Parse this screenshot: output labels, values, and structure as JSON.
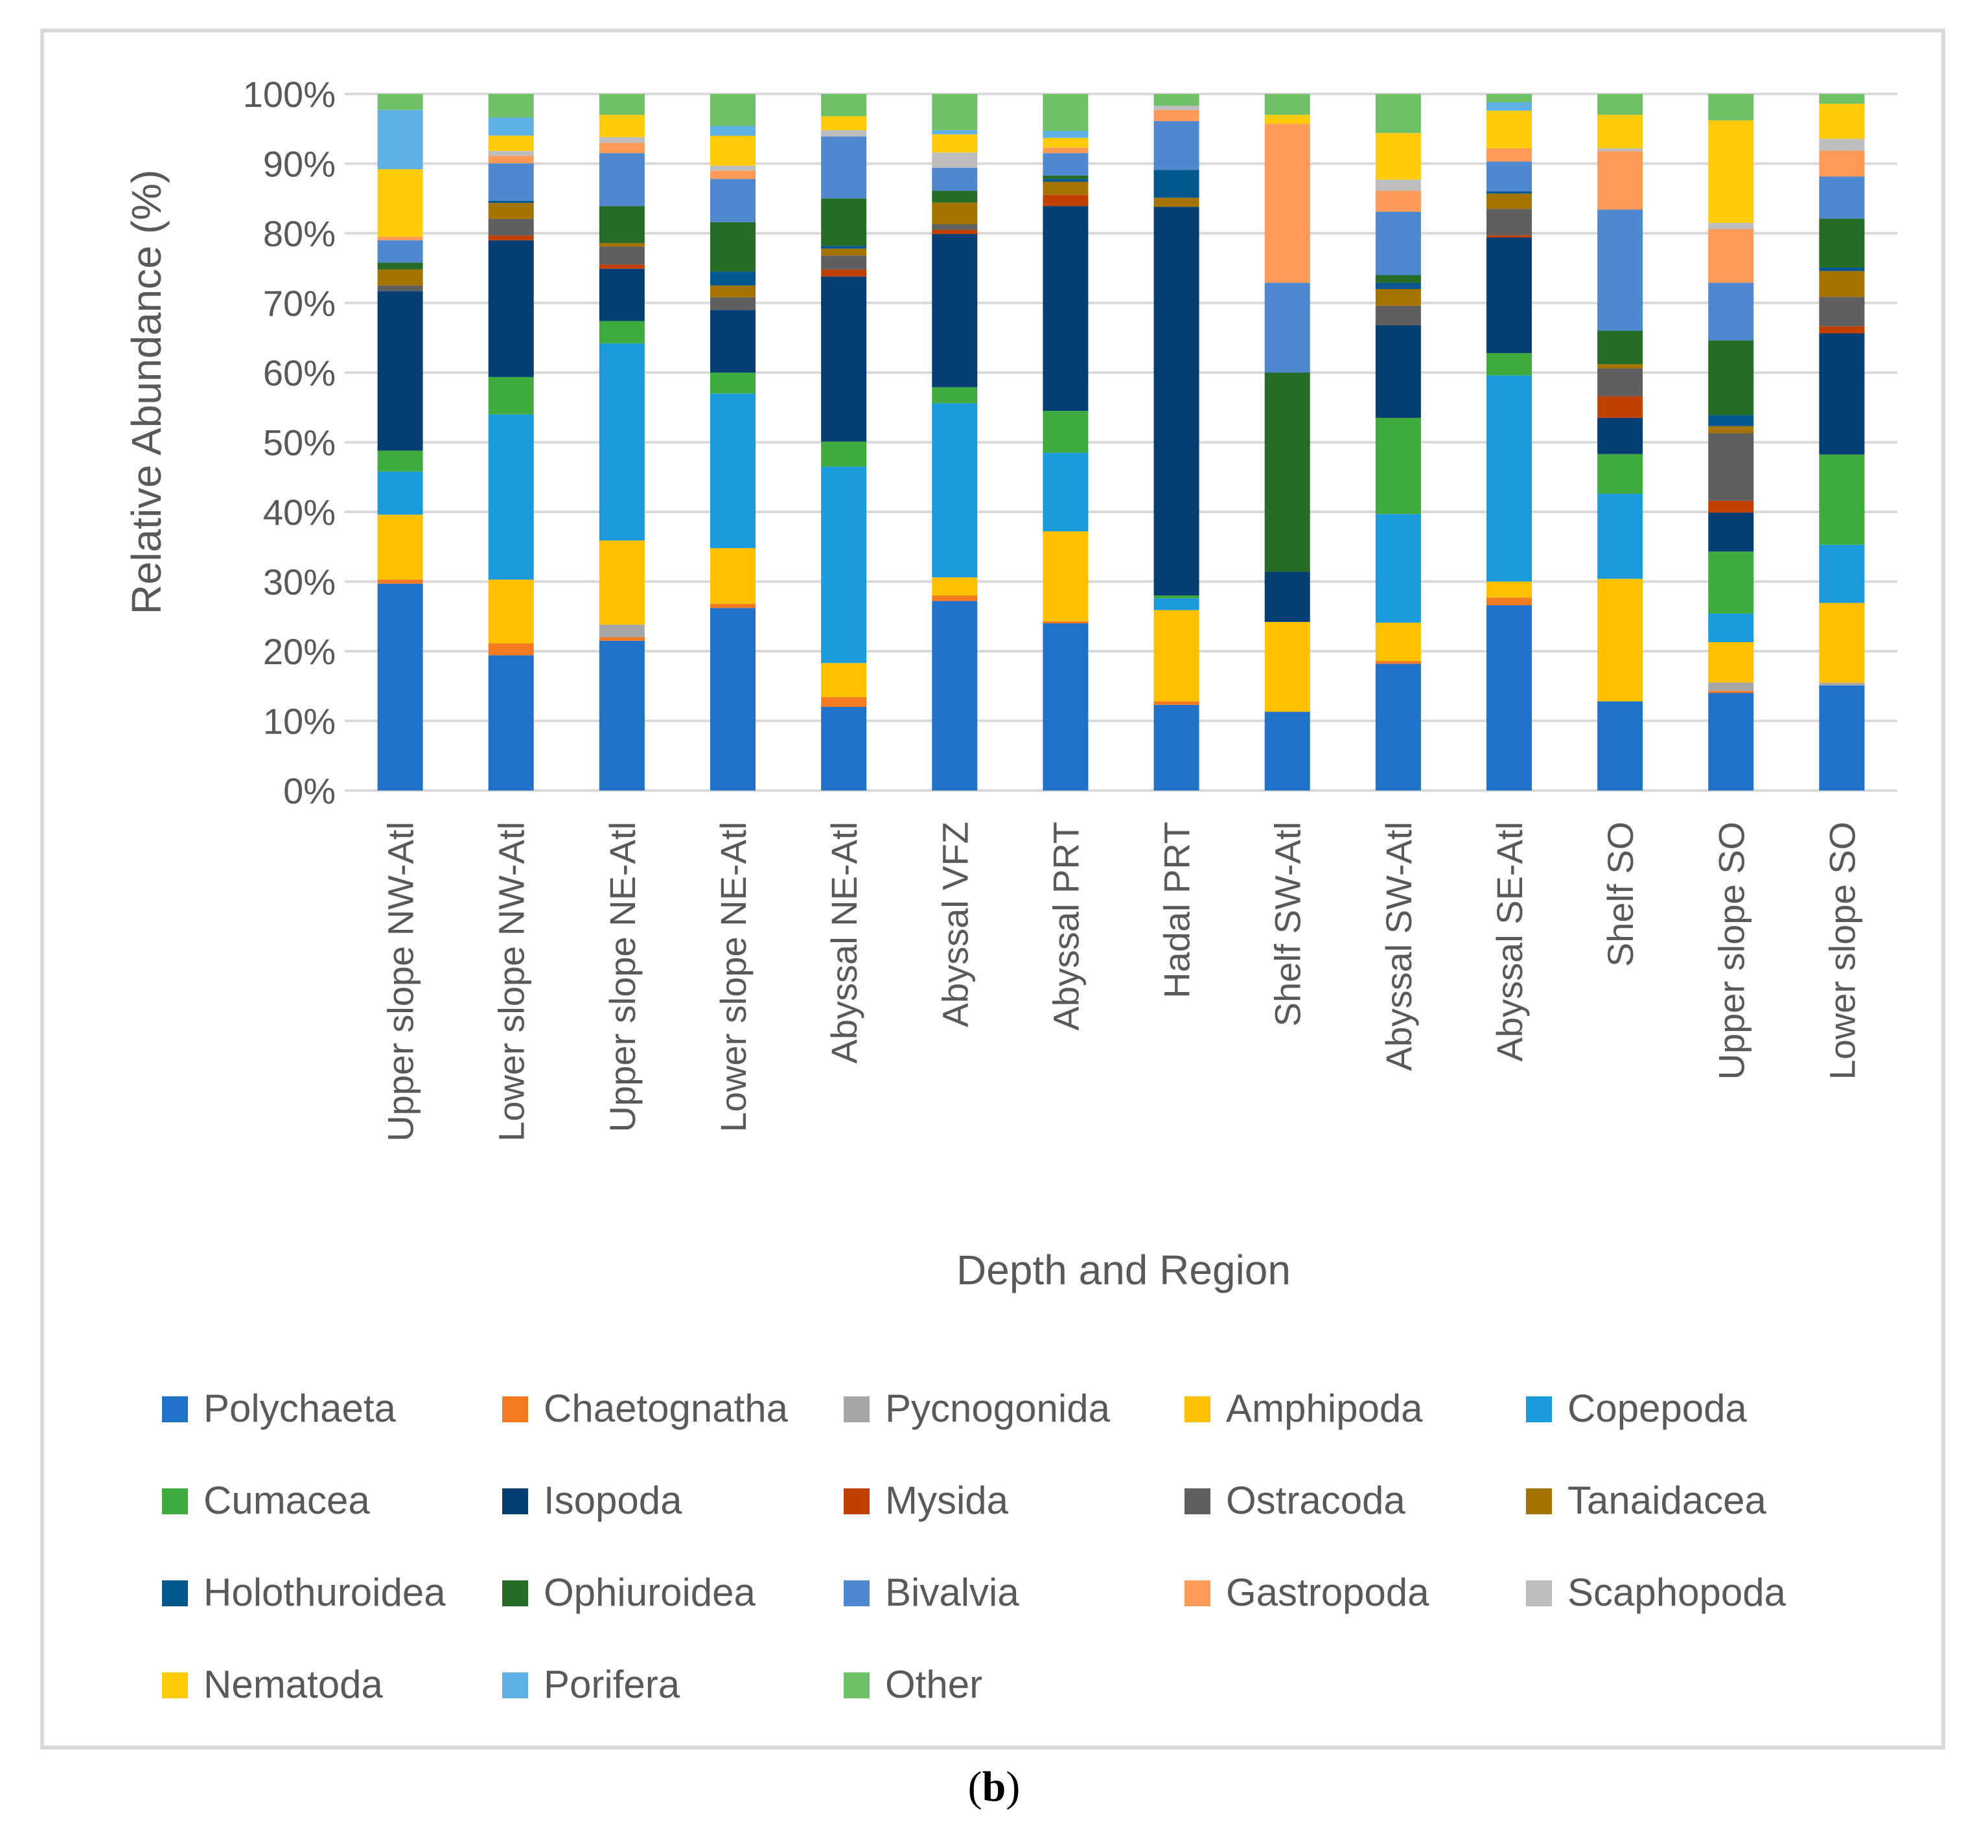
{
  "panel_label": {
    "open": "(",
    "letter": "b",
    "close": ")"
  },
  "chart_data": {
    "type": "bar",
    "stacked": true,
    "percent": true,
    "ylabel": "Relative Abundance (%)",
    "xlabel": "Depth and Region",
    "ylim": [
      0,
      100
    ],
    "yticks": [
      "0%",
      "10%",
      "20%",
      "30%",
      "40%",
      "50%",
      "60%",
      "70%",
      "80%",
      "90%",
      "100%"
    ],
    "legend_position": "bottom",
    "categories": [
      "Upper slope NW-Atl",
      "Lower slope NW-Atl",
      "Upper slope NE-Atl",
      "Lower slope NE-Atl",
      "Abyssal NE-Atl",
      "Abyssal VFZ",
      "Abyssal PRT",
      "Hadal PRT",
      "Shelf SW-Atl",
      "Abyssal SW-Atl",
      "Abyssal SE-Atl",
      "Shelf SO",
      "Upper slope SO",
      "Lower slope SO"
    ],
    "series": [
      {
        "name": "Polychaeta",
        "color": "#1f72c8",
        "values": [
          29.7,
          19.5,
          21.5,
          26.2,
          12.0,
          27.2,
          24.0,
          12.3,
          11.3,
          18.2,
          26.6,
          12.8,
          14.0,
          15.0
        ]
      },
      {
        "name": "Chaetognatha",
        "color": "#f47a22",
        "values": [
          0.6,
          1.7,
          0.5,
          0.6,
          1.4,
          0.8,
          0.3,
          0.5,
          0.0,
          0.4,
          1.1,
          0.0,
          0.3,
          0.0
        ]
      },
      {
        "name": "Pycnogonida",
        "color": "#a6a6a6",
        "values": [
          0.0,
          0.0,
          1.8,
          0.0,
          0.0,
          0.0,
          0.0,
          0.0,
          0.0,
          0.0,
          0.0,
          0.0,
          1.2,
          0.4
        ]
      },
      {
        "name": "Amphipoda",
        "color": "#ffc000",
        "values": [
          9.3,
          9.2,
          12.1,
          8.0,
          4.9,
          2.6,
          12.9,
          13.1,
          12.9,
          5.5,
          2.3,
          17.6,
          5.8,
          11.4
        ]
      },
      {
        "name": "Copepoda",
        "color": "#1b9bdb",
        "values": [
          6.2,
          23.8,
          28.3,
          22.2,
          28.2,
          25.0,
          11.3,
          1.7,
          0.0,
          15.6,
          29.6,
          12.2,
          4.1,
          8.3
        ]
      },
      {
        "name": "Cumacea",
        "color": "#3fab3f",
        "values": [
          3.0,
          5.4,
          3.2,
          3.0,
          3.6,
          2.3,
          6.0,
          0.4,
          0.0,
          13.8,
          3.2,
          5.7,
          8.9,
          12.9
        ]
      },
      {
        "name": "Isopoda",
        "color": "#043e72",
        "values": [
          22.9,
          19.7,
          7.5,
          9.0,
          23.7,
          22.0,
          29.4,
          55.8,
          7.2,
          13.3,
          16.6,
          5.2,
          5.6,
          17.3
        ]
      },
      {
        "name": "Mysida",
        "color": "#c04000",
        "values": [
          0.0,
          0.7,
          0.6,
          0.0,
          1.0,
          0.6,
          1.6,
          0.0,
          0.0,
          0.0,
          0.3,
          3.1,
          1.7,
          1.0
        ]
      },
      {
        "name": "Ostracoda",
        "color": "#5f5f5f",
        "values": [
          0.8,
          2.4,
          2.6,
          1.8,
          2.0,
          0.8,
          0.0,
          0.0,
          0.0,
          2.8,
          3.8,
          4.0,
          9.7,
          4.2
        ]
      },
      {
        "name": "Tanaidacea",
        "color": "#a57400",
        "values": [
          2.3,
          2.3,
          0.5,
          1.7,
          1.0,
          3.1,
          1.9,
          1.3,
          0.0,
          2.4,
          2.2,
          0.6,
          1.0,
          3.7
        ]
      },
      {
        "name": "Holothuroidea",
        "color": "#02578f",
        "values": [
          0.0,
          0.3,
          0.0,
          2.0,
          0.4,
          0.0,
          0.4,
          4.0,
          0.0,
          0.9,
          0.3,
          0.0,
          1.6,
          0.5
        ]
      },
      {
        "name": "Ophiuroidea",
        "color": "#266b26",
        "values": [
          1.0,
          0.0,
          5.3,
          7.1,
          6.8,
          1.7,
          0.5,
          0.0,
          28.6,
          1.1,
          0.0,
          4.8,
          10.7,
          7.0
        ]
      },
      {
        "name": "Bivalvia",
        "color": "#4f88cf",
        "values": [
          3.2,
          5.4,
          7.6,
          6.2,
          8.9,
          3.3,
          3.2,
          7.0,
          12.9,
          9.1,
          4.3,
          17.4,
          8.3,
          6.0
        ]
      },
      {
        "name": "Gastropoda",
        "color": "#fd9a58",
        "values": [
          0.5,
          1.1,
          1.5,
          1.2,
          0.0,
          0.0,
          0.8,
          1.6,
          22.8,
          3.0,
          1.9,
          8.4,
          7.7,
          3.7
        ]
      },
      {
        "name": "Scaphopoda",
        "color": "#bdbdbd",
        "values": [
          0.0,
          0.7,
          0.8,
          0.7,
          0.9,
          2.2,
          0.0,
          0.6,
          0.0,
          1.6,
          0.0,
          0.4,
          0.9,
          1.7
        ]
      },
      {
        "name": "Nematoda",
        "color": "#ffcb0a",
        "values": [
          9.7,
          2.2,
          3.2,
          4.3,
          2.0,
          2.6,
          1.4,
          0.0,
          1.3,
          6.7,
          5.4,
          4.8,
          14.7,
          5.0
        ]
      },
      {
        "name": "Porifera",
        "color": "#5eb0e5",
        "values": [
          8.5,
          2.6,
          0.0,
          1.4,
          0.0,
          0.6,
          1.0,
          0.0,
          0.0,
          0.0,
          1.2,
          0.0,
          0.0,
          0.0
        ]
      },
      {
        "name": "Other",
        "color": "#70c067",
        "values": [
          2.3,
          3.4,
          3.0,
          4.6,
          3.2,
          5.2,
          5.3,
          1.7,
          3.0,
          5.6,
          1.2,
          3.0,
          3.8,
          1.4
        ]
      }
    ]
  }
}
